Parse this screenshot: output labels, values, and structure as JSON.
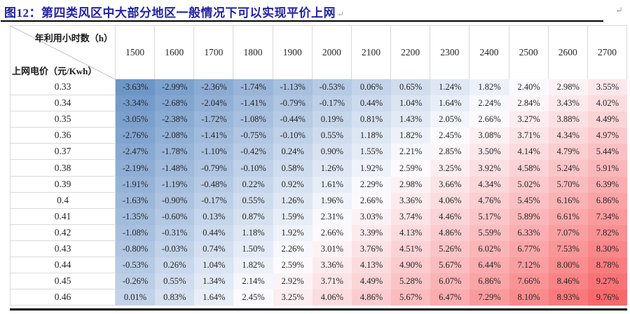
{
  "header": {
    "title": "图12：第四类风区中大部分地区一般情况下可以实现平价上网",
    "return_mark": "↵",
    "title_color": "#23239F"
  },
  "chart_data": {
    "type": "heatmap",
    "title": "图12：第四类风区中大部分地区一般情况下可以实现平价上网",
    "x_axis_label": "年利用小时数（h）",
    "y_axis_label": "上网电价（元/Kwh）",
    "columns": [
      "1500",
      "1600",
      "1700",
      "1800",
      "1900",
      "2000",
      "2100",
      "2200",
      "2300",
      "2400",
      "2500",
      "2600",
      "2700"
    ],
    "rows": [
      "0.33",
      "0.34",
      "0.35",
      "0.36",
      "0.37",
      "0.38",
      "0.39",
      "0.4",
      "0.41",
      "0.42",
      "0.43",
      "0.44",
      "0.45",
      "0.46"
    ],
    "values": [
      [
        -3.63,
        -2.99,
        -2.36,
        -1.74,
        -1.13,
        -0.53,
        0.06,
        0.65,
        1.24,
        1.82,
        2.4,
        2.98,
        3.55
      ],
      [
        -3.34,
        -2.68,
        -2.04,
        -1.41,
        -0.79,
        -0.17,
        0.44,
        1.04,
        1.64,
        2.24,
        2.84,
        3.43,
        4.02
      ],
      [
        -3.05,
        -2.38,
        -1.72,
        -1.08,
        -0.44,
        0.19,
        0.81,
        1.43,
        2.05,
        2.66,
        3.27,
        3.88,
        4.49
      ],
      [
        -2.76,
        -2.08,
        -1.41,
        -0.75,
        -0.1,
        0.55,
        1.18,
        1.82,
        2.45,
        3.08,
        3.71,
        4.34,
        4.97
      ],
      [
        -2.47,
        -1.78,
        -1.1,
        -0.42,
        0.24,
        0.9,
        1.55,
        2.21,
        2.85,
        3.5,
        4.14,
        4.79,
        5.44
      ],
      [
        -2.19,
        -1.48,
        -0.79,
        -0.1,
        0.58,
        1.26,
        1.92,
        2.59,
        3.25,
        3.92,
        4.58,
        5.24,
        5.91
      ],
      [
        -1.91,
        -1.19,
        -0.48,
        0.22,
        0.92,
        1.61,
        2.29,
        2.98,
        3.66,
        4.34,
        5.02,
        5.7,
        6.39
      ],
      [
        -1.63,
        -0.9,
        -0.17,
        0.55,
        1.26,
        1.96,
        2.66,
        3.36,
        4.06,
        4.76,
        5.45,
        6.16,
        6.86
      ],
      [
        -1.35,
        -0.6,
        0.13,
        0.87,
        1.59,
        2.31,
        3.03,
        3.74,
        4.46,
        5.17,
        5.89,
        6.61,
        7.34
      ],
      [
        -1.08,
        -0.31,
        0.44,
        1.18,
        1.92,
        2.66,
        3.39,
        4.13,
        4.86,
        5.59,
        6.33,
        7.07,
        7.82
      ],
      [
        -0.8,
        -0.03,
        0.74,
        1.5,
        2.26,
        3.01,
        3.76,
        4.51,
        5.26,
        6.02,
        6.77,
        7.53,
        8.3
      ],
      [
        -0.53,
        0.26,
        1.04,
        1.82,
        2.59,
        3.36,
        4.13,
        4.9,
        5.67,
        6.44,
        7.12,
        8.0,
        8.78
      ],
      [
        -0.26,
        0.55,
        1.34,
        2.14,
        2.92,
        3.71,
        4.49,
        5.28,
        6.07,
        6.86,
        7.66,
        8.46,
        9.27
      ],
      [
        0.01,
        0.83,
        1.64,
        2.45,
        3.25,
        4.06,
        4.86,
        5.67,
        6.47,
        7.29,
        8.1,
        8.93,
        9.76
      ]
    ],
    "value_format": "percent_2dp",
    "legend_position": "none",
    "grid": false,
    "color_scale": {
      "min": -3.63,
      "mid": 2.5,
      "max": 9.76,
      "min_color": "#6D96C8",
      "mid_color": "#FCFCFF",
      "max_color": "#F8696B"
    }
  }
}
